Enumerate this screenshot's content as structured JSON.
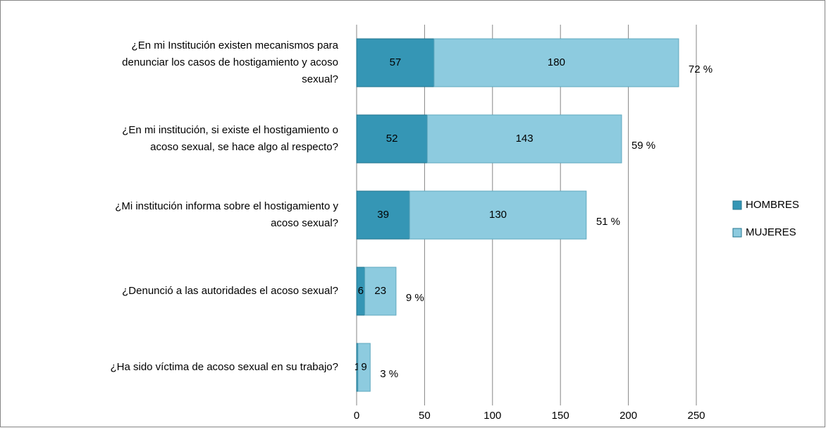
{
  "chart_data": {
    "type": "bar",
    "orientation": "horizontal",
    "stacked": true,
    "categories": [
      [
        "¿En mi Institución existen mecanismos para",
        "denunciar los casos de hostigamiento y acoso",
        "sexual?"
      ],
      [
        "¿En mi institución, si existe el hostigamiento o",
        "acoso sexual, se hace algo al respecto?"
      ],
      [
        "¿Mi institución informa sobre el hostigamiento y",
        "acoso sexual?"
      ],
      [
        "¿Denunció a las autoridades el acoso sexual?"
      ],
      [
        "¿Ha sido víctima de acoso sexual en su trabajo?"
      ]
    ],
    "series": [
      {
        "name": "HOMBRES",
        "color": "#3596b5",
        "values": [
          57,
          52,
          39,
          6,
          1
        ]
      },
      {
        "name": "MUJERES",
        "color": "#8dcbdf",
        "values": [
          180,
          143,
          130,
          23,
          9
        ]
      }
    ],
    "percent_labels": [
      "72 %",
      "59 %",
      "51 %",
      "9 %",
      "3 %"
    ],
    "xlim": [
      0,
      250
    ],
    "xticks": [
      0,
      50,
      100,
      150,
      200,
      250
    ],
    "grid": true,
    "legend": "right"
  }
}
